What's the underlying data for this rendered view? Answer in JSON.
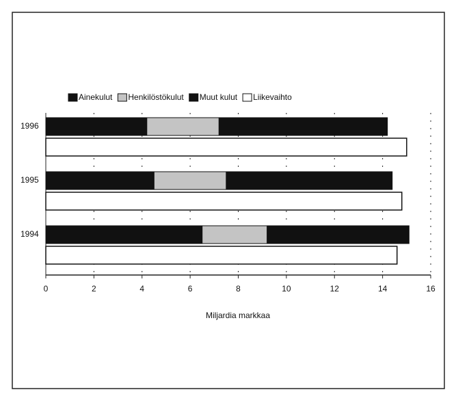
{
  "chart_data": {
    "type": "bar",
    "orientation": "horizontal",
    "categories": [
      "1996",
      "1995",
      "1994"
    ],
    "series": [
      {
        "name": "Ainekulut",
        "color": "#111111",
        "stacked": true,
        "values": [
          4.2,
          4.5,
          6.5
        ]
      },
      {
        "name": "Henkilöstökulut",
        "color": "#c4c4c4",
        "stacked": true,
        "values": [
          3.0,
          3.0,
          2.7
        ]
      },
      {
        "name": "Muut kulut",
        "color": "#111111",
        "stacked": true,
        "values": [
          7.0,
          6.9,
          5.9
        ]
      },
      {
        "name": "Liikevaihto",
        "color": "#ffffff",
        "stacked": false,
        "values": [
          15.0,
          14.8,
          14.6
        ]
      }
    ],
    "xlabel": "Miljardia markkaa",
    "xlim": [
      0,
      16
    ],
    "xticks": [
      0,
      2,
      4,
      6,
      8,
      10,
      12,
      14,
      16
    ],
    "grid": true,
    "legend": "top"
  }
}
